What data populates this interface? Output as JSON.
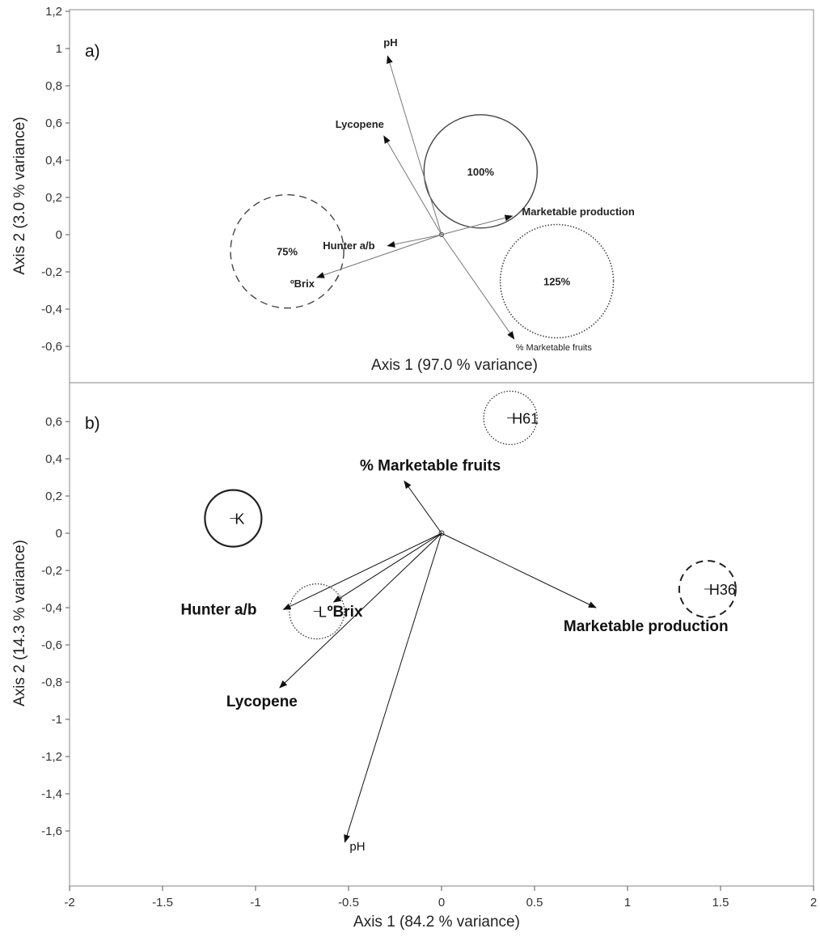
{
  "chart_data": [
    {
      "type": "scatter",
      "panel_label": "a)",
      "xlabel": "Axis 1 (97.0 % variance)",
      "ylabel": "Axis 2 (3.0 % variance)",
      "ylim": [
        -0.78,
        1.2
      ],
      "xlim": [
        -2,
        2
      ],
      "y_ticks": [
        "1,2",
        "1",
        "0,8",
        "0,6",
        "0,4",
        "0,2",
        "0",
        "-0,2",
        "-0,4",
        "-0,6"
      ],
      "y_tick_values": [
        1.2,
        1.0,
        0.8,
        0.6,
        0.4,
        0.2,
        0.0,
        -0.2,
        -0.4,
        -0.6
      ],
      "vectors": [
        {
          "name": "pH",
          "x": -0.29,
          "y": 0.96,
          "style": "bold"
        },
        {
          "name": "Lycopene",
          "x": -0.31,
          "y": 0.53,
          "style": "bold"
        },
        {
          "name": "Hunter a/b",
          "x": -0.29,
          "y": -0.06,
          "style": "bold"
        },
        {
          "name": "ºBrix",
          "x": -0.67,
          "y": -0.23,
          "style": "bold"
        },
        {
          "name": "Marketable production",
          "x": 0.38,
          "y": 0.1,
          "style": "bold"
        },
        {
          "name": "% Marketable fruits",
          "x": 0.39,
          "y": -0.56,
          "style": "light"
        }
      ],
      "groups": [
        {
          "name": "75%",
          "cx": -0.83,
          "cy": -0.09,
          "line": "dashed"
        },
        {
          "name": "100%",
          "cx": 0.21,
          "cy": 0.34,
          "line": "solid"
        },
        {
          "name": "125%",
          "cx": 0.62,
          "cy": -0.25,
          "line": "dotted"
        }
      ]
    },
    {
      "type": "scatter",
      "panel_label": "b)",
      "xlabel": "Axis 1 (84.2 % variance)",
      "ylabel": "Axis 2 (14.3 % variance)",
      "xlim": [
        -2,
        2
      ],
      "ylim": [
        -1.8,
        0.8
      ],
      "x_ticks": [
        "-2",
        "-1.5",
        "-1",
        "-0.5",
        "0",
        "0.5",
        "1",
        "1.5",
        "2"
      ],
      "x_tick_values": [
        -2,
        -1.5,
        -1,
        -0.5,
        0,
        0.5,
        1,
        1.5,
        2
      ],
      "y_ticks": [
        "0,6",
        "0,4",
        "0,2",
        "0",
        "-0,2",
        "-0,4",
        "-0,6",
        "-0,8",
        "-1",
        "-1,2",
        "-1,4",
        "-1,6"
      ],
      "y_tick_values": [
        0.6,
        0.4,
        0.2,
        0.0,
        -0.2,
        -0.4,
        -0.6,
        -0.8,
        -1.0,
        -1.2,
        -1.4,
        -1.6
      ],
      "vectors": [
        {
          "name": "% Marketable fruits",
          "x": -0.2,
          "y": 0.28,
          "style": "bold"
        },
        {
          "name": "Hunter a/b",
          "x": -0.85,
          "y": -0.41,
          "style": "bold"
        },
        {
          "name": "ºBrix",
          "x": -0.58,
          "y": -0.37,
          "style": "bold"
        },
        {
          "name": "Lycopene",
          "x": -0.87,
          "y": -0.83,
          "style": "bold"
        },
        {
          "name": "Marketable production",
          "x": 0.83,
          "y": -0.4,
          "style": "bold"
        },
        {
          "name": "pH",
          "x": -0.52,
          "y": -1.66,
          "style": "light"
        }
      ],
      "groups": [
        {
          "name": "K",
          "cx": -1.12,
          "cy": 0.08,
          "line": "solid"
        },
        {
          "name": "L",
          "cx": -0.67,
          "cy": -0.42,
          "line": "dotted"
        },
        {
          "name": "H61",
          "cx": 0.37,
          "cy": 0.62,
          "line": "dotted"
        },
        {
          "name": "H36",
          "cx": 1.43,
          "cy": -0.3,
          "line": "dashed"
        }
      ]
    }
  ]
}
